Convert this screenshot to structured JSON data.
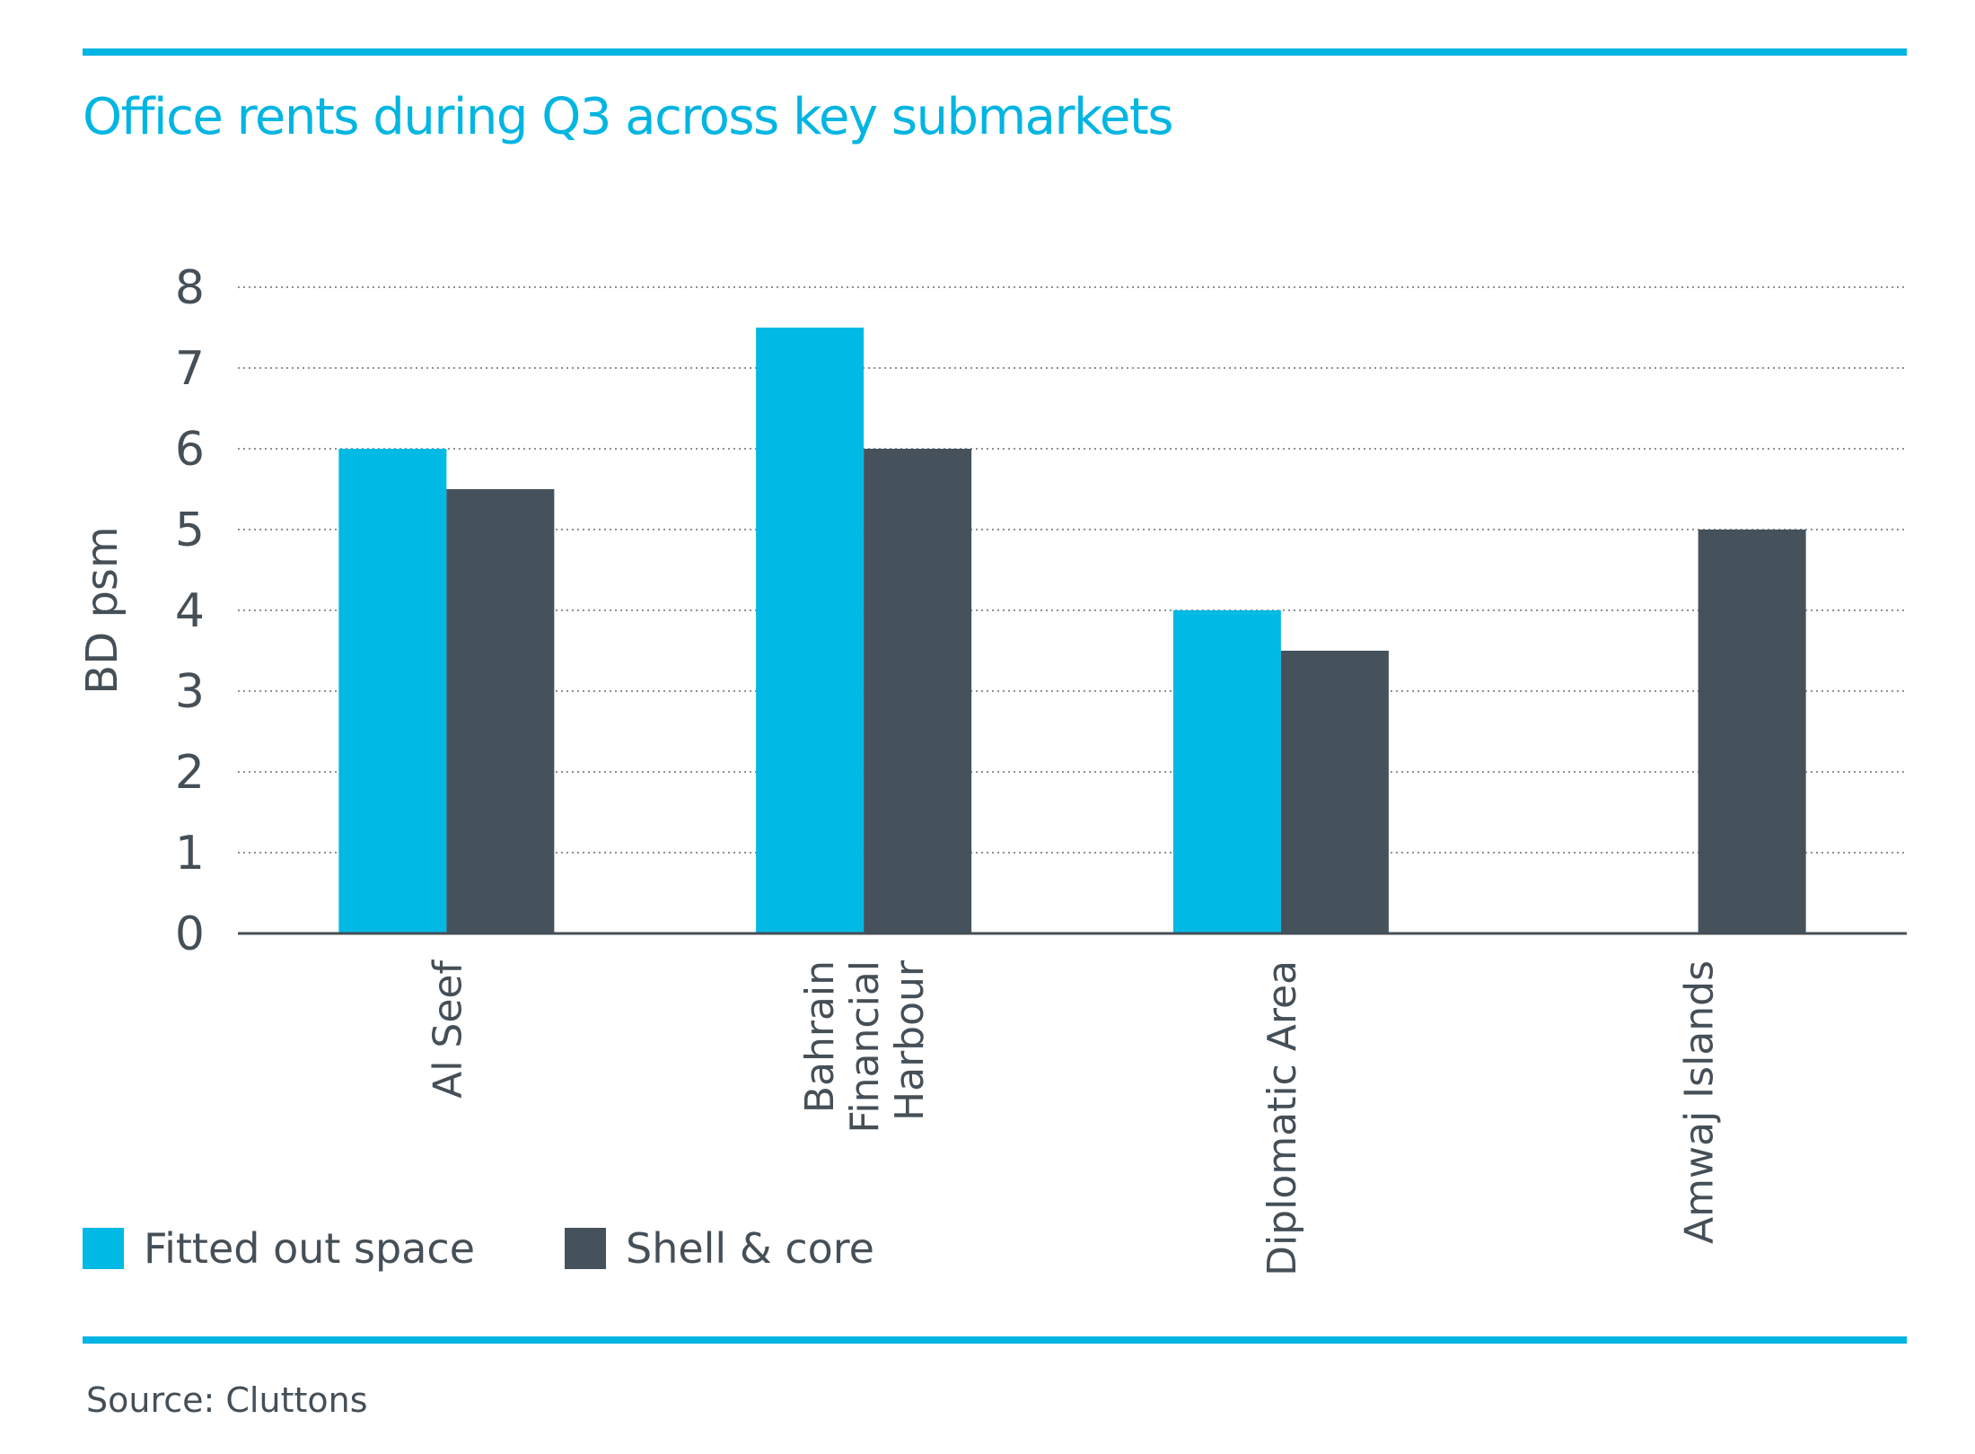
{
  "title": "Office rents during Q3 across key submarkets",
  "source": "Source: Cluttons",
  "colors": {
    "accent": "#00b5e2",
    "fitted_out": "#00b9e4",
    "shell_core": "#45525c",
    "text": "#454f57",
    "gridline": "#8a9197"
  },
  "chart_data": {
    "type": "bar",
    "title": "Office rents during Q3 across key submarkets",
    "ylabel": "BD psm",
    "xlabel": "",
    "ylim": [
      0,
      8
    ],
    "yticks": [
      "0",
      "1",
      "2",
      "3",
      "4",
      "5",
      "6",
      "7",
      "8"
    ],
    "grid": true,
    "legend_position": "bottom-left",
    "categories": [
      [
        "Al Seef"
      ],
      [
        "Bahrain",
        "Financial",
        "Harbour"
      ],
      [
        "Diplomatic Area"
      ],
      [
        "Amwaj Islands"
      ]
    ],
    "series": [
      {
        "name": "Fitted out space",
        "color": "#00b9e4",
        "values": [
          6,
          7.5,
          4,
          null
        ]
      },
      {
        "name": "Shell & core",
        "color": "#45525c",
        "values": [
          5.5,
          6,
          3.5,
          5
        ]
      }
    ]
  }
}
